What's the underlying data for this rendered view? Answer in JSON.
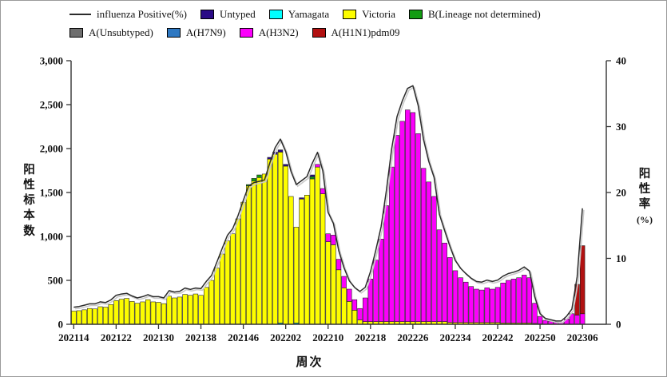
{
  "figure": {
    "background": "#ffffff",
    "border_color": "#9a9a9a"
  },
  "legend": {
    "rows": [
      [
        {
          "label": "influenza Positive(%)",
          "type": "line",
          "color": "#2b2b2b"
        },
        {
          "label": "Untyped",
          "type": "box",
          "color": "#2a0a86"
        },
        {
          "label": "Yamagata",
          "type": "box",
          "color": "#00ffff"
        },
        {
          "label": "Victoria",
          "type": "box",
          "color": "#fdfd00"
        },
        {
          "label": "B(Lineage not determined)",
          "type": "box",
          "color": "#129c12"
        }
      ],
      [
        {
          "label": "A(Unsubtyped)",
          "type": "box",
          "color": "#6e6e6e"
        },
        {
          "label": "A(H7N9)",
          "type": "box",
          "color": "#2e78c2"
        },
        {
          "label": "A(H3N2)",
          "type": "box",
          "color": "#fb00fb"
        },
        {
          "label": "A(H1N1)pdm09",
          "type": "box",
          "color": "#b11111"
        }
      ]
    ]
  },
  "chart_data": {
    "type": "bar",
    "subtype": "stacked-bars-with-line-overlay",
    "title": "",
    "xlabel": "周次",
    "ylabel_left": "阳性标本数",
    "ylabel_right": "阳性率",
    "ylabel_right_unit": "(%)",
    "ylim_left": [
      0,
      3000
    ],
    "ytick_values_left": [
      0,
      500,
      1000,
      1500,
      2000,
      2500,
      3000
    ],
    "ytick_labels_left": [
      "0",
      "500",
      "1,000",
      "1,500",
      "2,000",
      "2,500",
      "3,000"
    ],
    "ylim_right": [
      0,
      40
    ],
    "ytick_values_right": [
      0,
      10,
      20,
      30,
      40
    ],
    "ytick_labels_right": [
      "0",
      "10",
      "20",
      "30",
      "40"
    ],
    "x_tick_every": 8,
    "x_tick_labels": [
      "202114",
      "202122",
      "202130",
      "202138",
      "202146",
      "202202",
      "202210",
      "202218",
      "202226",
      "202234",
      "202242",
      "202250",
      "202306"
    ],
    "grid": false,
    "legend_position": "top",
    "weeks": [
      "202114",
      "202115",
      "202116",
      "202117",
      "202118",
      "202119",
      "202120",
      "202121",
      "202122",
      "202123",
      "202124",
      "202125",
      "202126",
      "202127",
      "202128",
      "202129",
      "202130",
      "202131",
      "202132",
      "202133",
      "202134",
      "202135",
      "202136",
      "202137",
      "202138",
      "202139",
      "202140",
      "202141",
      "202142",
      "202143",
      "202144",
      "202145",
      "202146",
      "202147",
      "202148",
      "202149",
      "202150",
      "202151",
      "202152",
      "202201",
      "202202",
      "202203",
      "202204",
      "202205",
      "202206",
      "202207",
      "202208",
      "202209",
      "202210",
      "202211",
      "202212",
      "202213",
      "202214",
      "202215",
      "202216",
      "202217",
      "202218",
      "202219",
      "202220",
      "202221",
      "202222",
      "202223",
      "202224",
      "202225",
      "202226",
      "202227",
      "202228",
      "202229",
      "202230",
      "202231",
      "202232",
      "202233",
      "202234",
      "202235",
      "202236",
      "202237",
      "202238",
      "202239",
      "202240",
      "202241",
      "202242",
      "202243",
      "202244",
      "202245",
      "202246",
      "202247",
      "202248",
      "202249",
      "202250",
      "202251",
      "202252",
      "202301",
      "202302",
      "202303",
      "202304",
      "202305",
      "202306"
    ],
    "stack_order": [
      "yamagata",
      "victoria",
      "h3n2",
      "h1n1pdm09",
      "b_lineage_nd",
      "untyped",
      "unsubtyped",
      "h7n9"
    ],
    "series": {
      "victoria": {
        "label": "Victoria",
        "color": "#fdfd00",
        "values": [
          150,
          155,
          165,
          180,
          175,
          200,
          195,
          225,
          270,
          285,
          295,
          260,
          240,
          255,
          280,
          255,
          250,
          235,
          320,
          300,
          310,
          340,
          330,
          345,
          330,
          420,
          500,
          640,
          800,
          950,
          1030,
          1200,
          1390,
          1575,
          1630,
          1670,
          1710,
          1880,
          1935,
          1945,
          1800,
          1455,
          1090,
          1425,
          1470,
          1655,
          1790,
          1485,
          940,
          905,
          620,
          415,
          260,
          160,
          50,
          30,
          30,
          30,
          30,
          30,
          30,
          30,
          30,
          30,
          30,
          30,
          30,
          30,
          30,
          30,
          30,
          20,
          20,
          20,
          20,
          20,
          20,
          20,
          20,
          20,
          20,
          15,
          15,
          15,
          15,
          15,
          15,
          10,
          5,
          0,
          0,
          0,
          0,
          0,
          0,
          0,
          0
        ]
      },
      "h3n2": {
        "label": "A(H3N2)",
        "color": "#fb00fb",
        "values": [
          0,
          0,
          0,
          0,
          0,
          0,
          0,
          0,
          0,
          0,
          0,
          0,
          0,
          0,
          0,
          0,
          0,
          0,
          0,
          0,
          0,
          0,
          0,
          0,
          0,
          0,
          0,
          0,
          0,
          0,
          0,
          0,
          0,
          0,
          0,
          0,
          0,
          0,
          0,
          0,
          0,
          0,
          0,
          0,
          0,
          0,
          30,
          60,
          90,
          110,
          120,
          130,
          140,
          120,
          130,
          270,
          485,
          700,
          940,
          1320,
          1760,
          2120,
          2280,
          2410,
          2380,
          2140,
          1745,
          1590,
          1425,
          1045,
          895,
          740,
          590,
          510,
          460,
          410,
          380,
          370,
          395,
          380,
          400,
          455,
          485,
          500,
          515,
          545,
          515,
          230,
          85,
          45,
          35,
          25,
          20,
          60,
          120,
          105,
          120
        ]
      },
      "h1n1pdm09": {
        "label": "A(H1N1)pdm09",
        "color": "#b11111",
        "values_by_week": {
          "202305": 350,
          "202306": 775
        }
      },
      "untyped": {
        "label": "Untyped",
        "color": "#2a0a86",
        "values_by_week": {
          "202151": 20,
          "202152": 25,
          "202201": 25,
          "202202": 20,
          "202205": 15,
          "202207": 20
        }
      },
      "yamagata": {
        "label": "Yamagata",
        "color": "#00ffff",
        "values_by_week": {
          "202201": 15,
          "202204": 15
        }
      },
      "b_lineage_nd": {
        "label": "B(Lineage not determined)",
        "color": "#129c12",
        "values_by_week": {
          "202147": 15,
          "202148": 30,
          "202149": 30,
          "202207": 25
        }
      },
      "unsubtyped": {
        "label": "A(Unsubtyped)",
        "color": "#6e6e6e",
        "values_by_week": {}
      },
      "h7n9": {
        "label": "A(H7N9)",
        "color": "#2e78c2",
        "values_by_week": {}
      },
      "influenza_positive_pct": {
        "label": "influenza Positive(%)",
        "color": "#2b2b2b",
        "axis": "right",
        "values": [
          2.6,
          2.7,
          2.9,
          3.1,
          3.1,
          3.4,
          3.3,
          3.7,
          4.4,
          4.6,
          4.7,
          4.3,
          4.0,
          4.2,
          4.5,
          4.2,
          4.2,
          4.0,
          5.1,
          4.9,
          5.0,
          5.5,
          5.3,
          5.5,
          5.4,
          6.5,
          7.4,
          9.4,
          11.5,
          13.5,
          14.5,
          16.5,
          18.8,
          21.0,
          21.5,
          21.7,
          21.9,
          24.5,
          26.8,
          28.1,
          26.2,
          23.2,
          21.2,
          21.8,
          22.4,
          24.4,
          26.1,
          23.3,
          17.0,
          15.3,
          11.2,
          8.6,
          6.6,
          5.6,
          5.0,
          5.6,
          8.0,
          11.2,
          14.8,
          20.3,
          26.6,
          31.5,
          33.9,
          35.8,
          36.2,
          33.2,
          28.1,
          24.7,
          22.3,
          16.7,
          14.2,
          11.8,
          9.7,
          8.5,
          7.7,
          7.0,
          6.5,
          6.4,
          6.7,
          6.5,
          6.7,
          7.3,
          7.7,
          7.9,
          8.2,
          8.7,
          8.1,
          4.2,
          1.6,
          0.9,
          0.7,
          0.5,
          0.5,
          1.2,
          2.3,
          7.2,
          17.6
        ]
      }
    }
  }
}
